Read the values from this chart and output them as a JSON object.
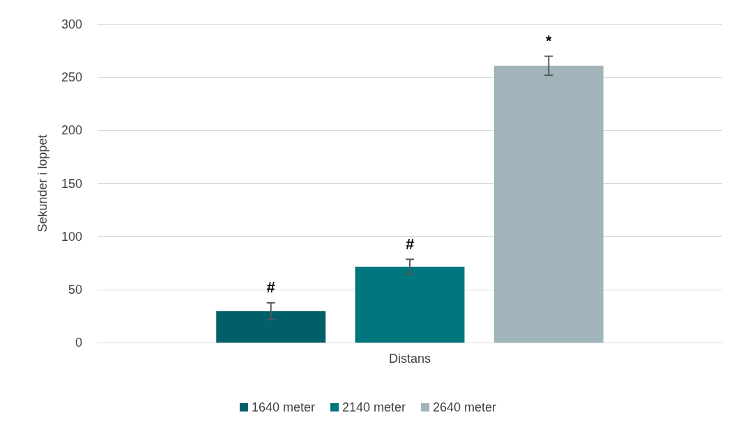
{
  "chart_data": {
    "type": "bar",
    "ylabel": "Sekunder i loppet",
    "categories": [
      "Distans"
    ],
    "series": [
      {
        "name": "1640 meter",
        "color": "#005f69",
        "values": [
          29.5
        ],
        "errors": [
          8
        ]
      },
      {
        "name": "2140 meter",
        "color": "#00767e",
        "values": [
          71.5
        ],
        "errors": [
          7
        ]
      },
      {
        "name": "2640 meter",
        "color": "#a0b4b9",
        "values": [
          261
        ],
        "errors": [
          9
        ]
      }
    ],
    "annotations": [
      "#",
      "#",
      "*"
    ],
    "ylim": [
      0,
      300
    ],
    "yticks": [
      0,
      50,
      100,
      150,
      200,
      250,
      300
    ],
    "grid": "y",
    "legend": "bottom"
  }
}
